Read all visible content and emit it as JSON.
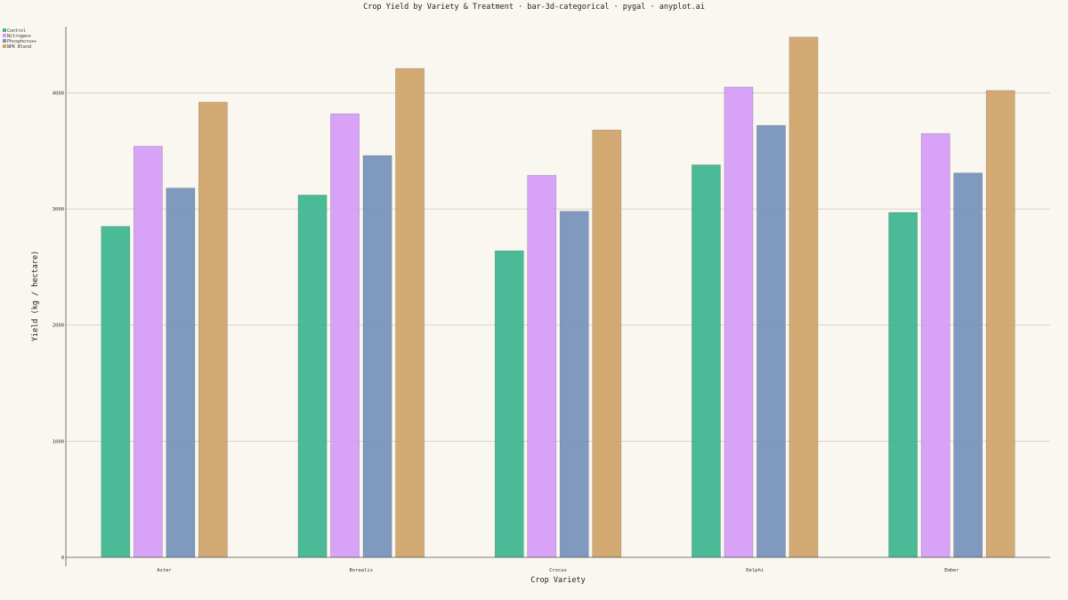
{
  "chart_data": {
    "type": "bar",
    "title": "Crop Yield by Variety & Treatment · bar-3d-categorical · pygal · anyplot.ai",
    "xlabel": "Crop Variety",
    "ylabel": "Yield (kg / hectare)",
    "categories": [
      "Aster",
      "Borealis",
      "Crocus",
      "Delphi",
      "Ember"
    ],
    "ylim": [
      0,
      4570
    ],
    "yticks": [
      0,
      1000,
      2000,
      3000,
      4000
    ],
    "grid": true,
    "legend_position": "top-left",
    "series": [
      {
        "name": "Control",
        "color": "#3cb48f",
        "values": [
          2850,
          3120,
          2640,
          3380,
          2970
        ]
      },
      {
        "name": "Nitrogen+",
        "color": "#d59bf7",
        "values": [
          3540,
          3820,
          3290,
          4050,
          3650
        ]
      },
      {
        "name": "Phosphorus+",
        "color": "#7490bb",
        "values": [
          3180,
          3460,
          2980,
          3720,
          3310
        ]
      },
      {
        "name": "NPK Blend",
        "color": "#cfa368",
        "values": [
          3920,
          4210,
          3680,
          4480,
          4020
        ]
      }
    ]
  }
}
